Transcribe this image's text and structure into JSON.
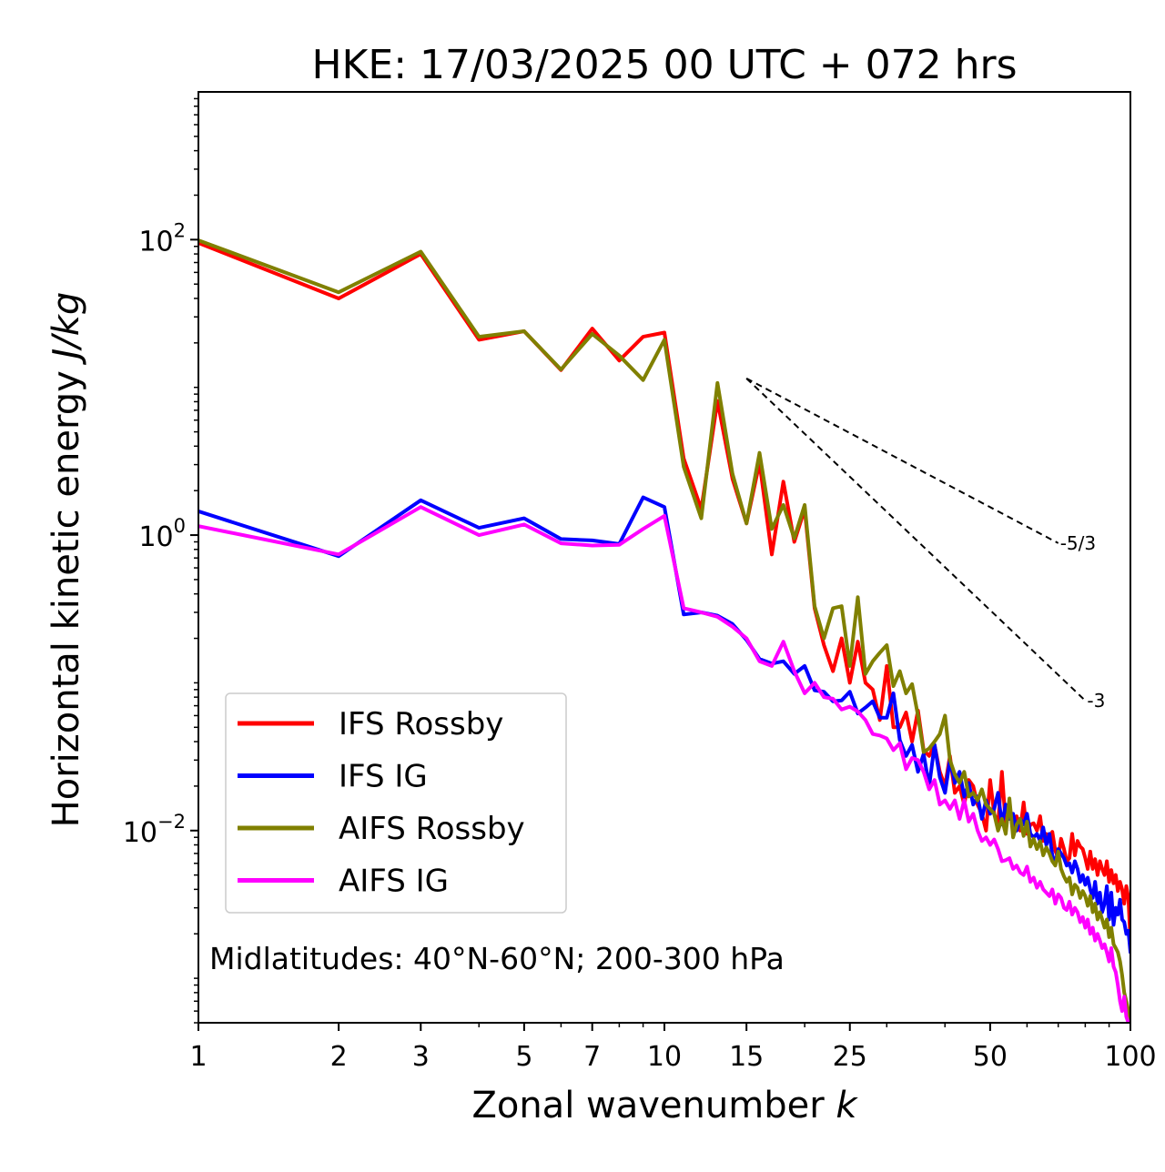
{
  "chart_data": {
    "type": "line",
    "title": "HKE: 17/03/2025 00 UTC + 072 hrs",
    "xlabel": "Zonal wavenumber",
    "xlabel_var": "k",
    "ylabel": "Horizontal kinetic energy",
    "ylabel_unit": "J/kg",
    "xscale": "log",
    "yscale": "log",
    "xlim": [
      1,
      100
    ],
    "ylim": [
      0.0005,
      1000
    ],
    "grid": false,
    "legend_position": "lower-left",
    "x_ticks": [
      {
        "value": 1,
        "label": "1"
      },
      {
        "value": 2,
        "label": "2"
      },
      {
        "value": 3,
        "label": "3"
      },
      {
        "value": 5,
        "label": "5"
      },
      {
        "value": 7,
        "label": "7"
      },
      {
        "value": 10,
        "label": "10"
      },
      {
        "value": 15,
        "label": "15"
      },
      {
        "value": 25,
        "label": "25"
      },
      {
        "value": 50,
        "label": "50"
      },
      {
        "value": 100,
        "label": "100"
      }
    ],
    "y_ticks": [
      {
        "value": 100,
        "base": "10",
        "exp": "2"
      },
      {
        "value": 1,
        "base": "10",
        "exp": "0"
      },
      {
        "value": 0.01,
        "base": "10",
        "exp": "−2"
      }
    ],
    "annotation": "Midlatitudes: 40°N-60°N; 200-300 hPa",
    "reference_slopes": [
      {
        "label": "-5/3",
        "slope": -1.6667,
        "x_start": 15,
        "x_end": 70,
        "y_start": 11.5
      },
      {
        "label": "-3",
        "slope": -3,
        "x_start": 15,
        "x_end": 80,
        "y_start": 11.5
      }
    ],
    "series": [
      {
        "name": "IFS Rossby",
        "color": "#ff0000",
        "x": [
          1,
          2,
          3,
          4,
          5,
          6,
          7,
          8,
          9,
          10,
          11,
          12,
          13,
          14,
          15,
          16,
          17,
          18,
          19,
          20,
          21,
          22,
          23,
          24,
          25,
          26,
          27,
          28,
          29,
          30,
          31,
          32,
          33,
          34,
          35,
          36,
          37,
          38,
          39,
          40,
          41,
          42,
          43,
          44,
          45,
          46,
          47,
          48,
          49,
          50,
          51,
          52,
          53,
          54,
          55,
          56,
          57,
          58,
          59,
          60,
          61,
          62,
          63,
          64,
          65,
          66,
          67,
          68,
          69,
          70,
          71,
          72,
          73,
          74,
          75,
          76,
          77,
          78,
          79,
          80,
          81,
          82,
          83,
          84,
          85,
          86,
          87,
          88,
          89,
          90,
          91,
          92,
          93,
          94,
          95,
          96,
          97,
          98,
          99,
          100
        ],
        "y": [
          95,
          40,
          80,
          21,
          24,
          13.1,
          25,
          15.2,
          22,
          23.5,
          3.3,
          1.5,
          8.1,
          2.4,
          1.2,
          3.1,
          0.74,
          2.3,
          0.9,
          1.5,
          0.32,
          0.18,
          0.12,
          0.2,
          0.1,
          0.19,
          0.1,
          0.09,
          0.056,
          0.13,
          0.05,
          0.05,
          0.063,
          0.04,
          0.065,
          0.035,
          0.032,
          0.038,
          0.025,
          0.02,
          0.032,
          0.018,
          0.02,
          0.015,
          0.022,
          0.02,
          0.015,
          0.013,
          0.01,
          0.022,
          0.013,
          0.011,
          0.025,
          0.011,
          0.0145,
          0.0105,
          0.0125,
          0.01,
          0.0155,
          0.0095,
          0.011,
          0.0112,
          0.01,
          0.0125,
          0.0085,
          0.0095,
          0.009,
          0.0098,
          0.0073,
          0.0065,
          0.0088,
          0.0075,
          0.0062,
          0.0065,
          0.0095,
          0.0068,
          0.0085,
          0.0078,
          0.0075,
          0.0065,
          0.0055,
          0.0072,
          0.0055,
          0.0064,
          0.005,
          0.0062,
          0.0055,
          0.005,
          0.0062,
          0.0045,
          0.0054,
          0.0044,
          0.005,
          0.0039,
          0.0045,
          0.004,
          0.0032,
          0.0042,
          0.0035,
          0.0018
        ]
      },
      {
        "name": "IFS IG",
        "color": "#0000ff",
        "x": [
          1,
          2,
          3,
          4,
          5,
          6,
          7,
          8,
          9,
          10,
          11,
          12,
          13,
          14,
          15,
          16,
          17,
          18,
          19,
          20,
          21,
          22,
          23,
          24,
          25,
          26,
          27,
          28,
          29,
          30,
          31,
          32,
          33,
          34,
          35,
          36,
          37,
          38,
          39,
          40,
          41,
          42,
          43,
          44,
          45,
          46,
          47,
          48,
          49,
          50,
          51,
          52,
          53,
          54,
          55,
          56,
          57,
          58,
          59,
          60,
          61,
          62,
          63,
          64,
          65,
          66,
          67,
          68,
          69,
          70,
          71,
          72,
          73,
          74,
          75,
          76,
          77,
          78,
          79,
          80,
          81,
          82,
          83,
          84,
          85,
          86,
          87,
          88,
          89,
          90,
          91,
          92,
          93,
          94,
          95,
          96,
          97,
          98,
          99,
          100
        ],
        "y": [
          1.45,
          0.72,
          1.72,
          1.12,
          1.3,
          0.94,
          0.92,
          0.87,
          1.8,
          1.55,
          0.29,
          0.3,
          0.285,
          0.25,
          0.195,
          0.145,
          0.135,
          0.14,
          0.115,
          0.13,
          0.089,
          0.087,
          0.075,
          0.076,
          0.087,
          0.062,
          0.068,
          0.075,
          0.058,
          0.058,
          0.085,
          0.041,
          0.032,
          0.038,
          0.025,
          0.033,
          0.02,
          0.038,
          0.023,
          0.018,
          0.03,
          0.021,
          0.025,
          0.017,
          0.021,
          0.015,
          0.017,
          0.012,
          0.016,
          0.013,
          0.014,
          0.018,
          0.011,
          0.015,
          0.012,
          0.013,
          0.01,
          0.012,
          0.011,
          0.013,
          0.0095,
          0.009,
          0.0095,
          0.0085,
          0.0105,
          0.008,
          0.0095,
          0.0068,
          0.006,
          0.0075,
          0.007,
          0.0065,
          0.0058,
          0.006,
          0.0052,
          0.0062,
          0.0055,
          0.0045,
          0.005,
          0.0043,
          0.0048,
          0.004,
          0.0035,
          0.0045,
          0.0032,
          0.0038,
          0.0028,
          0.0032,
          0.0042,
          0.0025,
          0.0038,
          0.0023,
          0.003,
          0.0027,
          0.0034,
          0.0025,
          0.0024,
          0.002,
          0.0021,
          0.0015
        ]
      },
      {
        "name": "AIFS Rossby",
        "color": "#808000",
        "x": [
          1,
          2,
          3,
          4,
          5,
          6,
          7,
          8,
          9,
          10,
          11,
          12,
          13,
          14,
          15,
          16,
          17,
          18,
          19,
          20,
          21,
          22,
          23,
          24,
          25,
          26,
          27,
          28,
          29,
          30,
          31,
          32,
          33,
          34,
          35,
          36,
          37,
          38,
          39,
          40,
          41,
          42,
          43,
          44,
          45,
          46,
          47,
          48,
          49,
          50,
          51,
          52,
          53,
          54,
          55,
          56,
          57,
          58,
          59,
          60,
          61,
          62,
          63,
          64,
          65,
          66,
          67,
          68,
          69,
          70,
          71,
          72,
          73,
          74,
          75,
          76,
          77,
          78,
          79,
          80,
          81,
          82,
          83,
          84,
          85,
          86,
          87,
          88,
          89,
          90,
          91,
          92,
          93,
          94,
          95,
          96,
          97,
          98,
          99,
          100
        ],
        "y": [
          99,
          44,
          83,
          22,
          24,
          13.2,
          23,
          16.4,
          11.2,
          21,
          2.9,
          1.3,
          10.7,
          2.6,
          1.2,
          3.6,
          1.1,
          1.6,
          0.95,
          1.6,
          0.33,
          0.2,
          0.32,
          0.33,
          0.13,
          0.38,
          0.115,
          0.14,
          0.16,
          0.18,
          0.095,
          0.12,
          0.085,
          0.098,
          0.06,
          0.034,
          0.036,
          0.04,
          0.045,
          0.06,
          0.03,
          0.024,
          0.021,
          0.025,
          0.017,
          0.018,
          0.016,
          0.019,
          0.015,
          0.014,
          0.013,
          0.01,
          0.012,
          0.0095,
          0.0165,
          0.009,
          0.011,
          0.012,
          0.0092,
          0.0115,
          0.0078,
          0.0088,
          0.0075,
          0.0085,
          0.0068,
          0.0077,
          0.007,
          0.0062,
          0.0058,
          0.0072,
          0.0055,
          0.0049,
          0.0045,
          0.0048,
          0.0037,
          0.0043,
          0.0041,
          0.0035,
          0.0039,
          0.0036,
          0.0031,
          0.0036,
          0.0028,
          0.0032,
          0.0025,
          0.0028,
          0.0025,
          0.0022,
          0.0025,
          0.0019,
          0.0022,
          0.0017,
          0.0016,
          0.0015,
          0.0013,
          0.00105,
          0.0008,
          0.0007,
          0.0006,
          0.0005
        ]
      },
      {
        "name": "AIFS IG",
        "color": "#ff00ff",
        "x": [
          1,
          2,
          3,
          4,
          5,
          6,
          7,
          8,
          9,
          10,
          11,
          12,
          13,
          14,
          15,
          16,
          17,
          18,
          19,
          20,
          21,
          22,
          23,
          24,
          25,
          26,
          27,
          28,
          29,
          30,
          31,
          32,
          33,
          34,
          35,
          36,
          37,
          38,
          39,
          40,
          41,
          42,
          43,
          44,
          45,
          46,
          47,
          48,
          49,
          50,
          51,
          52,
          53,
          54,
          55,
          56,
          57,
          58,
          59,
          60,
          61,
          62,
          63,
          64,
          65,
          66,
          67,
          68,
          69,
          70,
          71,
          72,
          73,
          74,
          75,
          76,
          77,
          78,
          79,
          80,
          81,
          82,
          83,
          84,
          85,
          86,
          87,
          88,
          89,
          90,
          91,
          92,
          93,
          94,
          95,
          96,
          97,
          98,
          99,
          100
        ],
        "y": [
          1.15,
          0.74,
          1.55,
          1,
          1.18,
          0.88,
          0.85,
          0.86,
          1.1,
          1.35,
          0.32,
          0.3,
          0.28,
          0.24,
          0.2,
          0.14,
          0.13,
          0.19,
          0.12,
          0.085,
          0.1,
          0.08,
          0.078,
          0.066,
          0.069,
          0.064,
          0.056,
          0.045,
          0.044,
          0.042,
          0.035,
          0.039,
          0.026,
          0.031,
          0.03,
          0.025,
          0.019,
          0.022,
          0.015,
          0.016,
          0.014,
          0.016,
          0.012,
          0.016,
          0.0115,
          0.013,
          0.01,
          0.0085,
          0.009,
          0.008,
          0.0087,
          0.0075,
          0.0062,
          0.0063,
          0.0065,
          0.0055,
          0.0058,
          0.0052,
          0.005,
          0.0057,
          0.0045,
          0.0048,
          0.0041,
          0.0045,
          0.004,
          0.0038,
          0.0036,
          0.004,
          0.0032,
          0.0037,
          0.0035,
          0.003,
          0.0029,
          0.0033,
          0.0027,
          0.003,
          0.0028,
          0.0024,
          0.0026,
          0.0022,
          0.0025,
          0.002,
          0.0022,
          0.0018,
          0.002,
          0.0018,
          0.0016,
          0.0017,
          0.0015,
          0.0013,
          0.0016,
          0.0012,
          0.0011,
          0.0009,
          0.0007,
          0.0006,
          0.00075,
          0.00055,
          0.0005,
          0.00045
        ]
      }
    ]
  }
}
